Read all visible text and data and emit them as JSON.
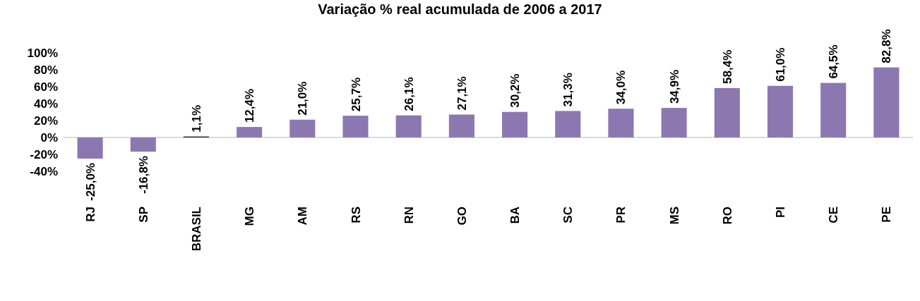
{
  "chart_data": {
    "type": "bar",
    "title": "Variação % real acumulada de 2006 a 2017",
    "categories": [
      "RJ",
      "SP",
      "BRASIL",
      "MG",
      "AM",
      "RS",
      "RN",
      "GO",
      "BA",
      "SC",
      "PR",
      "MS",
      "RO",
      "PI",
      "CE",
      "PE"
    ],
    "values": [
      -25.0,
      -16.8,
      1.1,
      12.4,
      21.0,
      25.7,
      26.1,
      27.1,
      30.2,
      31.3,
      34.0,
      34.9,
      58.4,
      61.0,
      64.5,
      82.8
    ],
    "value_labels": [
      "-25,0%",
      "-16,8%",
      "1,1%",
      "12,4%",
      "21,0%",
      "25,7%",
      "26,1%",
      "27,1%",
      "30,2%",
      "31,3%",
      "34,0%",
      "34,9%",
      "58,4%",
      "61,0%",
      "64,5%",
      "82,8%"
    ],
    "colors": [
      "#8c77b1",
      "#8c77b1",
      "#1a1a1a",
      "#8c77b1",
      "#8c77b1",
      "#8c77b1",
      "#8c77b1",
      "#8c77b1",
      "#8c77b1",
      "#8c77b1",
      "#8c77b1",
      "#8c77b1",
      "#8c77b1",
      "#8c77b1",
      "#8c77b1",
      "#8c77b1"
    ],
    "ylim": [
      -40,
      100
    ],
    "yticks": [
      {
        "value": -40,
        "label": "-40%"
      },
      {
        "value": -20,
        "label": "-20%"
      },
      {
        "value": 0,
        "label": "0%"
      },
      {
        "value": 20,
        "label": "20%"
      },
      {
        "value": 40,
        "label": "40%"
      },
      {
        "value": 60,
        "label": "60%"
      },
      {
        "value": 80,
        "label": "80%"
      },
      {
        "value": 100,
        "label": "100%"
      }
    ]
  }
}
